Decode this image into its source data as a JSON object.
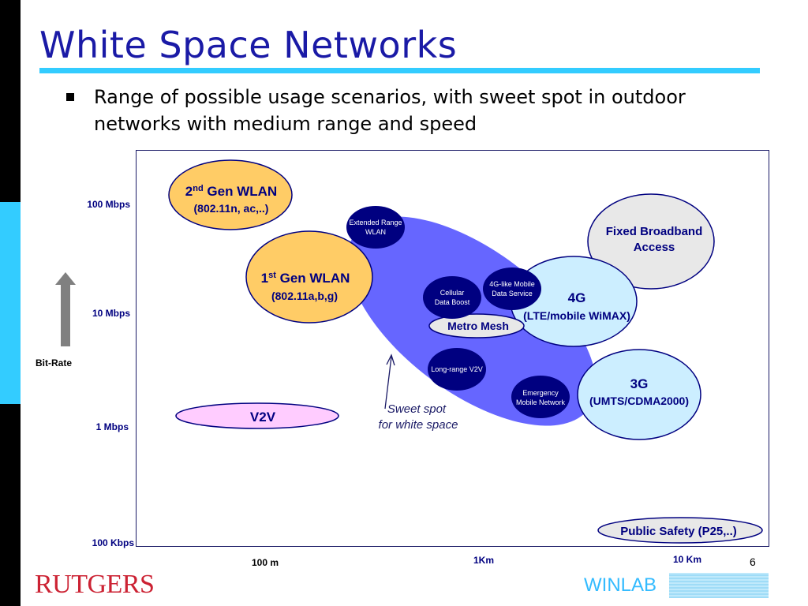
{
  "slide": {
    "title": "White Space Networks",
    "bullet": "Range of possible usage scenarios, with sweet spot in outdoor networks with medium range and speed",
    "number": "6"
  },
  "logos": {
    "left": "RUTGERS",
    "right": "WINLAB"
  },
  "axis": {
    "y_label": "Bit-Rate",
    "y_ticks": [
      "100 Mbps",
      "10 Mbps",
      "1 Mbps",
      "100 Kbps"
    ],
    "x_ticks": [
      "100 m",
      "1Km",
      "10 Km"
    ]
  },
  "annotation": {
    "line1": "Sweet spot",
    "line2": "for white space"
  },
  "bubbles": {
    "wlan2": {
      "prefix": "2",
      "sup": "nd",
      "suffix": " Gen WLAN",
      "sub": "(802.11n, ac,..)"
    },
    "wlan1": {
      "prefix": "1",
      "sup": "st",
      "suffix": " Gen WLAN",
      "sub": "(802.11a,b,g)"
    },
    "fixed": {
      "line1": "Fixed Broadband",
      "line2": "Access"
    },
    "g4": {
      "line1": "4G",
      "line2": "(LTE/mobile WiMAX)"
    },
    "g3": {
      "line1": "3G",
      "line2": "(UMTS/CDMA2000)"
    },
    "v2v": {
      "label": "V2V"
    },
    "public_safety": {
      "label": "Public Safety (P25,..)"
    },
    "metro_mesh": {
      "label": "Metro Mesh"
    },
    "extended_range": {
      "line1": "Extended Range",
      "line2": "WLAN"
    },
    "cellular": {
      "line1": "Cellular",
      "line2": "Data Boost"
    },
    "mobile4g": {
      "line1": "4G-like Mobile",
      "line2": "Data Service"
    },
    "v2v_long": {
      "label": "Long-range V2V"
    },
    "emergency": {
      "line1": "Emergency",
      "line2": "Mobile Network"
    }
  },
  "colors": {
    "title": "#1a1aa6",
    "accent": "#33ccff",
    "sweet_spot": "#6666ff",
    "wlan": "#ffcc66",
    "cellular": "#cceeff",
    "fixed": "#e8e8e8",
    "v2v": "#ffccff",
    "dark_node": "#000080",
    "rutgers": "#cc2233"
  }
}
